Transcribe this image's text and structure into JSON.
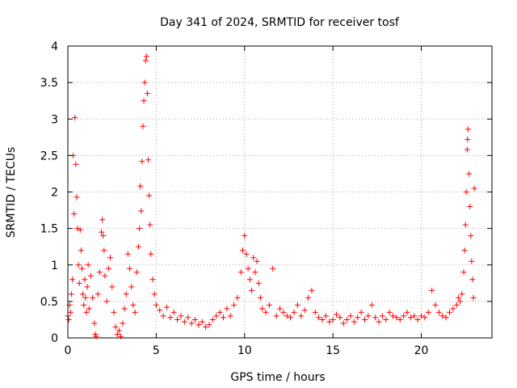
{
  "chart_data": {
    "type": "scatter",
    "title": "Day 341 of 2024, SRMTID for receiver tosf",
    "xlabel": "GPS time / hours",
    "ylabel": "SRMTID / TECUs",
    "xlim": [
      0,
      24
    ],
    "ylim": [
      0,
      4
    ],
    "xticks": [
      0,
      5,
      10,
      15,
      20
    ],
    "xtick_labels": [
      "0",
      "5",
      "10",
      "15",
      "20"
    ],
    "yticks": [
      0,
      0.5,
      1,
      1.5,
      2,
      2.5,
      3,
      3.5,
      4
    ],
    "ytick_labels": [
      "0",
      "0.5",
      "1",
      "1.5",
      "2",
      "2.5",
      "3",
      "3.5",
      "4"
    ],
    "grid": true,
    "marker": "+",
    "series": [
      {
        "name": "SRMTID",
        "color": "#ff0000",
        "points": [
          [
            0.0,
            0.3
          ],
          [
            0.05,
            0.25
          ],
          [
            0.1,
            0.45
          ],
          [
            0.15,
            0.35
          ],
          [
            0.2,
            0.6
          ],
          [
            0.25,
            0.8
          ],
          [
            0.3,
            2.5
          ],
          [
            0.35,
            1.7
          ],
          [
            0.4,
            3.02
          ],
          [
            0.45,
            2.38
          ],
          [
            0.5,
            1.93
          ],
          [
            0.55,
            1.5
          ],
          [
            0.6,
            1.0
          ],
          [
            0.65,
            0.75
          ],
          [
            0.7,
            1.48
          ],
          [
            0.75,
            1.2
          ],
          [
            0.8,
            0.95
          ],
          [
            0.85,
            0.6
          ],
          [
            0.9,
            0.45
          ],
          [
            0.95,
            0.8
          ],
          [
            1.0,
            0.55
          ],
          [
            1.05,
            0.35
          ],
          [
            1.1,
            0.7
          ],
          [
            1.15,
            1.0
          ],
          [
            1.2,
            0.4
          ],
          [
            1.3,
            0.85
          ],
          [
            1.4,
            0.55
          ],
          [
            1.5,
            0.2
          ],
          [
            1.55,
            0.05
          ],
          [
            1.6,
            0.02
          ],
          [
            1.7,
            0.6
          ],
          [
            1.8,
            0.9
          ],
          [
            1.9,
            1.45
          ],
          [
            1.95,
            1.62
          ],
          [
            2.0,
            1.4
          ],
          [
            2.05,
            1.2
          ],
          [
            2.1,
            0.85
          ],
          [
            2.2,
            0.5
          ],
          [
            2.3,
            0.95
          ],
          [
            2.4,
            1.1
          ],
          [
            2.5,
            0.7
          ],
          [
            2.6,
            0.35
          ],
          [
            2.7,
            0.15
          ],
          [
            2.8,
            0.05
          ],
          [
            2.9,
            0.1
          ],
          [
            3.0,
            0.02
          ],
          [
            3.1,
            0.2
          ],
          [
            3.2,
            0.4
          ],
          [
            3.3,
            0.6
          ],
          [
            3.4,
            1.15
          ],
          [
            3.5,
            0.95
          ],
          [
            3.6,
            0.7
          ],
          [
            3.7,
            0.45
          ],
          [
            3.8,
            0.35
          ],
          [
            3.9,
            0.9
          ],
          [
            4.0,
            1.25
          ],
          [
            4.05,
            1.5
          ],
          [
            4.1,
            2.08
          ],
          [
            4.15,
            1.74
          ],
          [
            4.2,
            2.42
          ],
          [
            4.25,
            2.9
          ],
          [
            4.3,
            3.25
          ],
          [
            4.35,
            3.5
          ],
          [
            4.4,
            3.8
          ],
          [
            4.45,
            3.86
          ],
          [
            4.5,
            3.35
          ],
          [
            4.55,
            2.44
          ],
          [
            4.6,
            1.95
          ],
          [
            4.65,
            1.55
          ],
          [
            4.7,
            1.15
          ],
          [
            4.8,
            0.8
          ],
          [
            4.9,
            0.6
          ],
          [
            5.0,
            0.45
          ],
          [
            5.2,
            0.38
          ],
          [
            5.4,
            0.3
          ],
          [
            5.6,
            0.42
          ],
          [
            5.8,
            0.28
          ],
          [
            6.0,
            0.35
          ],
          [
            6.2,
            0.25
          ],
          [
            6.4,
            0.3
          ],
          [
            6.6,
            0.22
          ],
          [
            6.8,
            0.28
          ],
          [
            7.0,
            0.2
          ],
          [
            7.2,
            0.25
          ],
          [
            7.4,
            0.18
          ],
          [
            7.6,
            0.22
          ],
          [
            7.8,
            0.15
          ],
          [
            8.0,
            0.18
          ],
          [
            8.2,
            0.25
          ],
          [
            8.4,
            0.3
          ],
          [
            8.6,
            0.35
          ],
          [
            8.8,
            0.28
          ],
          [
            9.0,
            0.4
          ],
          [
            9.2,
            0.3
          ],
          [
            9.4,
            0.45
          ],
          [
            9.6,
            0.55
          ],
          [
            9.8,
            0.9
          ],
          [
            9.9,
            1.2
          ],
          [
            10.0,
            1.4
          ],
          [
            10.1,
            1.15
          ],
          [
            10.2,
            0.95
          ],
          [
            10.3,
            0.8
          ],
          [
            10.4,
            0.65
          ],
          [
            10.5,
            1.1
          ],
          [
            10.6,
            0.9
          ],
          [
            10.7,
            1.05
          ],
          [
            10.8,
            0.75
          ],
          [
            10.9,
            0.55
          ],
          [
            11.0,
            0.4
          ],
          [
            11.2,
            0.35
          ],
          [
            11.4,
            0.45
          ],
          [
            11.6,
            0.95
          ],
          [
            11.8,
            0.3
          ],
          [
            12.0,
            0.4
          ],
          [
            12.2,
            0.35
          ],
          [
            12.4,
            0.3
          ],
          [
            12.6,
            0.28
          ],
          [
            12.8,
            0.35
          ],
          [
            13.0,
            0.45
          ],
          [
            13.2,
            0.3
          ],
          [
            13.4,
            0.38
          ],
          [
            13.6,
            0.55
          ],
          [
            13.8,
            0.65
          ],
          [
            14.0,
            0.35
          ],
          [
            14.2,
            0.28
          ],
          [
            14.4,
            0.25
          ],
          [
            14.6,
            0.3
          ],
          [
            14.8,
            0.22
          ],
          [
            15.0,
            0.25
          ],
          [
            15.2,
            0.32
          ],
          [
            15.4,
            0.28
          ],
          [
            15.6,
            0.2
          ],
          [
            15.8,
            0.25
          ],
          [
            16.0,
            0.3
          ],
          [
            16.2,
            0.22
          ],
          [
            16.4,
            0.28
          ],
          [
            16.6,
            0.35
          ],
          [
            16.8,
            0.25
          ],
          [
            17.0,
            0.3
          ],
          [
            17.2,
            0.45
          ],
          [
            17.4,
            0.28
          ],
          [
            17.6,
            0.22
          ],
          [
            17.8,
            0.3
          ],
          [
            18.0,
            0.25
          ],
          [
            18.2,
            0.35
          ],
          [
            18.4,
            0.3
          ],
          [
            18.6,
            0.28
          ],
          [
            18.8,
            0.25
          ],
          [
            19.0,
            0.3
          ],
          [
            19.2,
            0.35
          ],
          [
            19.4,
            0.28
          ],
          [
            19.6,
            0.3
          ],
          [
            19.8,
            0.25
          ],
          [
            20.0,
            0.3
          ],
          [
            20.2,
            0.28
          ],
          [
            20.4,
            0.35
          ],
          [
            20.6,
            0.65
          ],
          [
            20.8,
            0.45
          ],
          [
            21.0,
            0.35
          ],
          [
            21.2,
            0.3
          ],
          [
            21.4,
            0.28
          ],
          [
            21.6,
            0.35
          ],
          [
            21.8,
            0.4
          ],
          [
            22.0,
            0.45
          ],
          [
            22.1,
            0.55
          ],
          [
            22.2,
            0.5
          ],
          [
            22.3,
            0.6
          ],
          [
            22.4,
            0.9
          ],
          [
            22.45,
            1.2
          ],
          [
            22.5,
            1.55
          ],
          [
            22.55,
            2.0
          ],
          [
            22.6,
            2.58
          ],
          [
            22.62,
            2.72
          ],
          [
            22.65,
            2.86
          ],
          [
            22.7,
            2.25
          ],
          [
            22.75,
            1.8
          ],
          [
            22.8,
            1.4
          ],
          [
            22.85,
            1.05
          ],
          [
            22.9,
            0.8
          ],
          [
            22.95,
            0.55
          ],
          [
            23.0,
            2.05
          ]
        ]
      }
    ]
  }
}
